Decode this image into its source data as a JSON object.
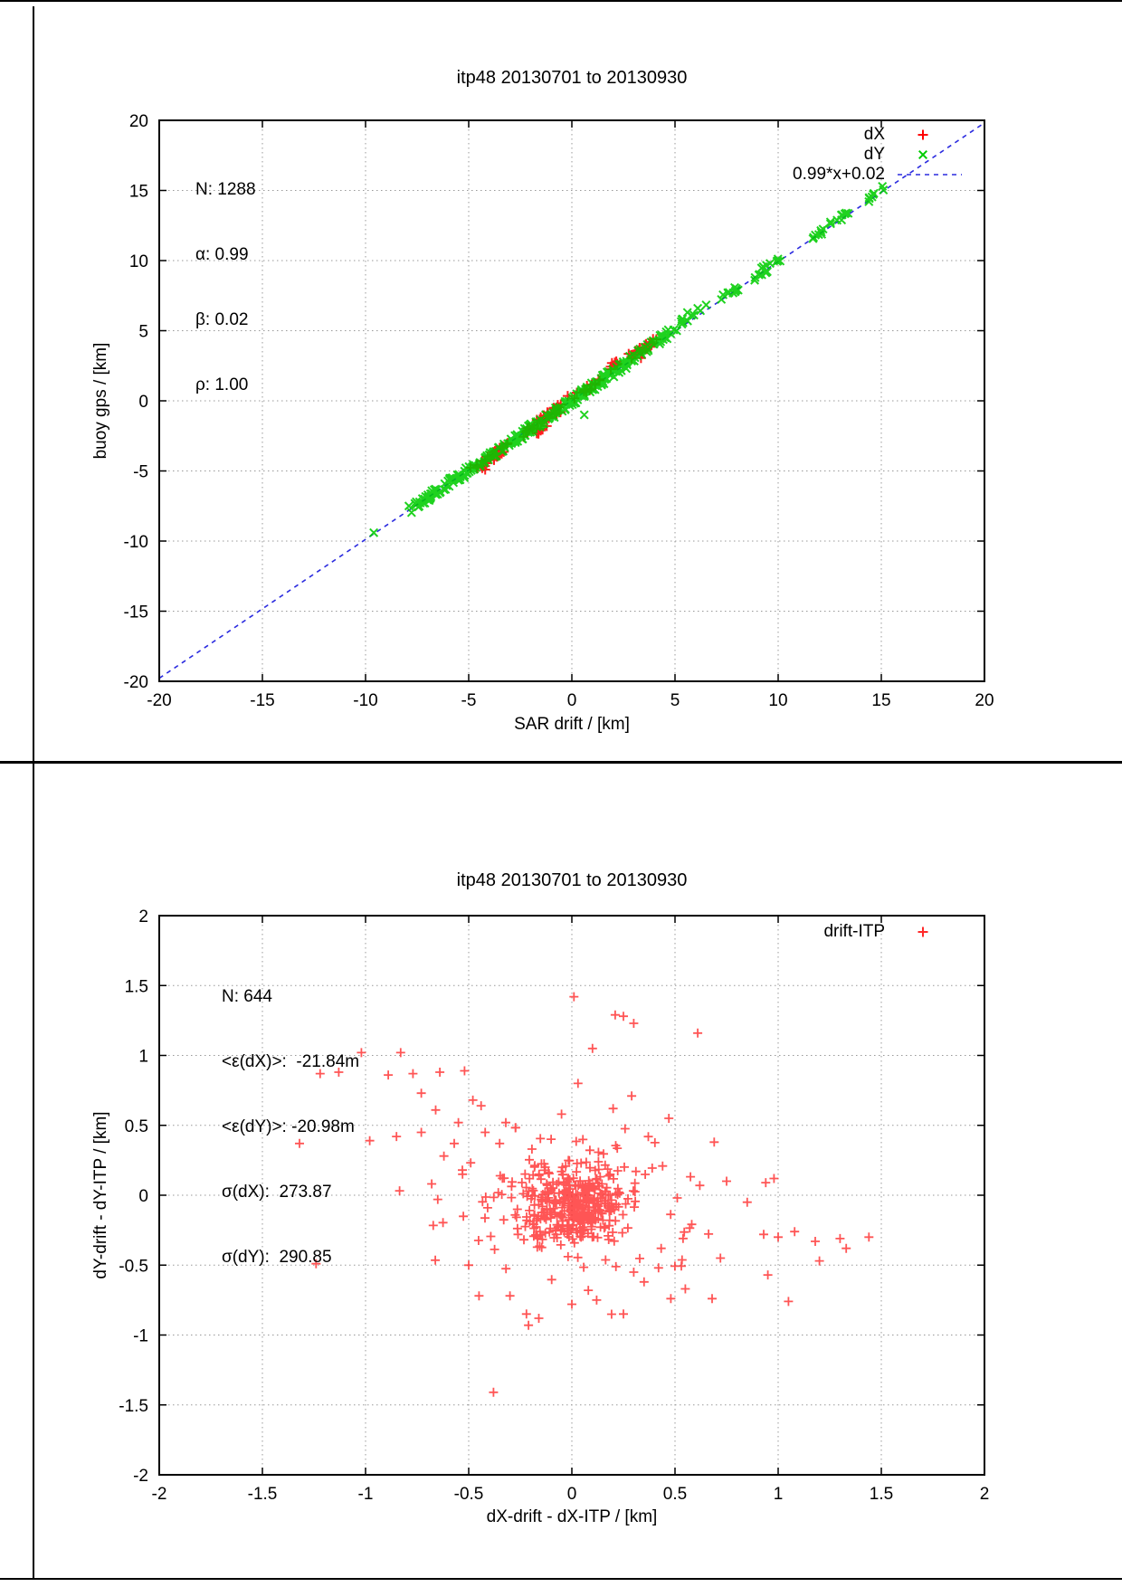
{
  "page": {
    "background": "#ffffff",
    "frame_color": "#000000"
  },
  "chart_data": [
    {
      "type": "scatter",
      "title": "itp48 20130701 to 20130930",
      "xlabel": "SAR drift / [km]",
      "ylabel": "buoy gps / [km]",
      "xlim": [
        -20,
        20
      ],
      "ylim": [
        -20,
        20
      ],
      "xticks": [
        -20,
        -15,
        -10,
        -5,
        0,
        5,
        10,
        15,
        20
      ],
      "xtick_labels": [
        "-20",
        "-15",
        "-10",
        "-5",
        "0",
        "5",
        "10",
        "15",
        "20"
      ],
      "yticks": [
        -20,
        -15,
        -10,
        -5,
        0,
        5,
        10,
        15,
        20
      ],
      "ytick_labels": [
        "-20",
        "-15",
        "-10",
        "-5",
        "0",
        "5",
        "10",
        "15",
        "20"
      ],
      "grid": true,
      "legend_position": "top-right",
      "stats_lines": [
        "N: 1288",
        "α: 0.99",
        "β: 0.02",
        "ρ: 1.00"
      ],
      "legend": [
        {
          "label": "dX",
          "marker": "plus",
          "color": "#ff0000"
        },
        {
          "label": "dY",
          "marker": "cross",
          "color": "#00cc00"
        },
        {
          "label": "0.99*x+0.02",
          "marker": "dashed-line",
          "color": "#2b2bdf"
        }
      ],
      "fit_line": {
        "slope": 0.99,
        "intercept": 0.02,
        "color": "#2b2bdf"
      },
      "series": [
        {
          "name": "dX",
          "marker": "plus",
          "color": "#ff0000",
          "seed": 7,
          "size": 5.5,
          "stroke": 2,
          "opacity": 0.88,
          "bands": [
            {
              "x0": -4.8,
              "x1": -3.1,
              "dy": -0.15,
              "jx": 0.15,
              "jy": 0.3,
              "n": 40
            },
            {
              "x0": -2.5,
              "x1": -0.5,
              "dy": 0.05,
              "jx": 0.2,
              "jy": 0.35,
              "n": 38
            },
            {
              "x0": 0.2,
              "x1": 1.3,
              "dy": 0.1,
              "jx": 0.2,
              "jy": 0.25,
              "n": 14
            },
            {
              "x0": 2.8,
              "x1": 4.0,
              "dy": 0.3,
              "jx": 0.2,
              "jy": 0.3,
              "n": 26
            },
            {
              "x0": 1.7,
              "x1": 2.3,
              "dy": 0.55,
              "jx": 0.15,
              "jy": 0.2,
              "n": 8
            },
            {
              "x0": -1.7,
              "x1": -1.1,
              "dy": -0.7,
              "jx": 0.12,
              "jy": 0.25,
              "n": 6
            }
          ],
          "points": [
            [
              -4.2,
              -4.9
            ],
            [
              3.35,
              3.05
            ],
            [
              3.6,
              4.05
            ],
            [
              -0.2,
              0.35
            ]
          ]
        },
        {
          "name": "dY",
          "marker": "cross",
          "color": "#00cc00",
          "seed": 13,
          "size": 5.5,
          "stroke": 2,
          "opacity": 0.88,
          "bands": [
            {
              "x0": -7.7,
              "x1": -5.3,
              "dy": 0.1,
              "jx": 0.2,
              "jy": 0.3,
              "n": 55
            },
            {
              "x0": -5.3,
              "x1": -2.6,
              "dy": 0.0,
              "jx": 0.2,
              "jy": 0.3,
              "n": 70
            },
            {
              "x0": -2.6,
              "x1": 2.6,
              "dy": 0.0,
              "jx": 0.25,
              "jy": 0.35,
              "n": 150
            },
            {
              "x0": 2.6,
              "x1": 5.0,
              "dy": 0.1,
              "jx": 0.2,
              "jy": 0.3,
              "n": 42
            },
            {
              "x0": 5.4,
              "x1": 6.4,
              "dy": 0.25,
              "jx": 0.2,
              "jy": 0.25,
              "n": 10
            },
            {
              "x0": 7.3,
              "x1": 8.1,
              "dy": 0.0,
              "jx": 0.15,
              "jy": 0.25,
              "n": 12
            },
            {
              "x0": 9.0,
              "x1": 10.0,
              "dy": 0.0,
              "jx": 0.2,
              "jy": 0.3,
              "n": 16
            },
            {
              "x0": 11.5,
              "x1": 12.6,
              "dy": 0.0,
              "jx": 0.2,
              "jy": 0.25,
              "n": 10
            },
            {
              "x0": 12.9,
              "x1": 13.4,
              "dy": 0.0,
              "jx": 0.15,
              "jy": 0.2,
              "n": 7
            },
            {
              "x0": 14.4,
              "x1": 15.3,
              "dy": 0.0,
              "jx": 0.2,
              "jy": 0.25,
              "n": 8
            }
          ],
          "points": [
            [
              -9.6,
              -9.4
            ],
            [
              5.6,
              6.3
            ],
            [
              6.1,
              6.6
            ],
            [
              0.6,
              -1.0
            ],
            [
              -7.9,
              -7.5
            ]
          ]
        }
      ]
    },
    {
      "type": "scatter",
      "title": "itp48 20130701 to 20130930",
      "xlabel": "dX-drift - dX-ITP / [km]",
      "ylabel": "dY-drift - dY-ITP / [km]",
      "xlim": [
        -2,
        2
      ],
      "ylim": [
        -2,
        2
      ],
      "xticks": [
        -2,
        -1.5,
        -1,
        -0.5,
        0,
        0.5,
        1,
        1.5,
        2
      ],
      "xtick_labels": [
        "-2",
        "-1.5",
        "-1",
        "-0.5",
        "0",
        "0.5",
        "1",
        "1.5",
        "2"
      ],
      "yticks": [
        -2,
        -1.5,
        -1,
        -0.5,
        0,
        0.5,
        1,
        1.5,
        2
      ],
      "ytick_labels": [
        "-2",
        "-1.5",
        "-1",
        "-0.5",
        "0",
        "0.5",
        "1",
        "1.5",
        "2"
      ],
      "grid": true,
      "legend_position": "top-right",
      "stats_lines": [
        "N: 644",
        "<ε(dX)>:  -21.84m",
        "<ε(dY)>: -20.98m",
        "σ(dX):  273.87",
        "σ(dY):  290.85"
      ],
      "legend": [
        {
          "label": "drift-ITP",
          "marker": "plus",
          "color": "#ff2a2a"
        }
      ],
      "series": [
        {
          "name": "drift-ITP",
          "marker": "plus",
          "color": "#ff2a2a",
          "seed": 3,
          "size": 5,
          "stroke": 1.8,
          "opacity": 0.8,
          "gauss": [
            {
              "cx": 0.02,
              "cy": -0.07,
              "sx": 0.13,
              "sy": 0.13,
              "n": 320
            },
            {
              "cx": 0.0,
              "cy": -0.1,
              "sx": 0.3,
              "sy": 0.25,
              "n": 140
            }
          ],
          "points": [
            [
              -1.32,
              0.37
            ],
            [
              -1.24,
              -0.49
            ],
            [
              -1.22,
              0.87
            ],
            [
              -1.13,
              0.88
            ],
            [
              -1.02,
              1.02
            ],
            [
              -0.98,
              0.39
            ],
            [
              -0.89,
              0.86
            ],
            [
              -0.85,
              0.42
            ],
            [
              -0.83,
              1.02
            ],
            [
              -0.77,
              0.87
            ],
            [
              -0.73,
              0.73
            ],
            [
              -0.73,
              0.45
            ],
            [
              -0.66,
              0.61
            ],
            [
              -0.64,
              0.88
            ],
            [
              -0.57,
              0.37
            ],
            [
              -0.55,
              0.52
            ],
            [
              -0.52,
              0.89
            ],
            [
              -0.48,
              0.68
            ],
            [
              -0.44,
              0.64
            ],
            [
              -0.42,
              0.45
            ],
            [
              -0.35,
              0.37
            ],
            [
              -0.32,
              0.52
            ],
            [
              -0.53,
              0.15
            ],
            [
              -0.65,
              -0.03
            ],
            [
              -0.62,
              0.28
            ],
            [
              0.01,
              1.42
            ],
            [
              0.21,
              1.29
            ],
            [
              0.25,
              1.28
            ],
            [
              0.3,
              1.23
            ],
            [
              0.61,
              1.16
            ],
            [
              0.1,
              1.05
            ],
            [
              0.03,
              0.8
            ],
            [
              0.29,
              0.71
            ],
            [
              0.2,
              0.62
            ],
            [
              -0.05,
              0.58
            ],
            [
              0.47,
              0.55
            ],
            [
              0.69,
              0.38
            ],
            [
              0.94,
              0.09
            ],
            [
              0.75,
              0.1
            ],
            [
              0.98,
              0.12
            ],
            [
              0.85,
              -0.05
            ],
            [
              0.93,
              -0.28
            ],
            [
              1.0,
              -0.3
            ],
            [
              1.08,
              -0.26
            ],
            [
              1.18,
              -0.33
            ],
            [
              1.3,
              -0.31
            ],
            [
              1.33,
              -0.38
            ],
            [
              1.44,
              -0.3
            ],
            [
              1.2,
              -0.47
            ],
            [
              0.95,
              -0.57
            ],
            [
              1.05,
              -0.76
            ],
            [
              0.62,
              0.07
            ],
            [
              0.72,
              -0.45
            ],
            [
              -0.38,
              -1.41
            ],
            [
              -0.21,
              -0.93
            ],
            [
              -0.16,
              -0.88
            ],
            [
              -0.3,
              -0.72
            ],
            [
              -0.22,
              -0.85
            ],
            [
              0.0,
              -0.78
            ],
            [
              0.08,
              -0.68
            ],
            [
              0.12,
              -0.75
            ],
            [
              0.35,
              -0.62
            ],
            [
              0.55,
              -0.67
            ],
            [
              0.48,
              -0.74
            ],
            [
              0.68,
              -0.74
            ],
            [
              0.25,
              -0.85
            ],
            [
              -0.45,
              -0.72
            ],
            [
              -0.5,
              -0.5
            ],
            [
              0.3,
              -0.55
            ],
            [
              0.42,
              -0.52
            ]
          ]
        }
      ]
    }
  ]
}
